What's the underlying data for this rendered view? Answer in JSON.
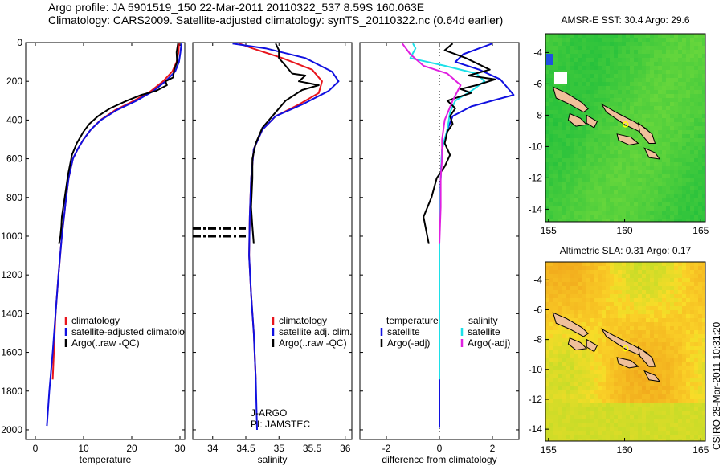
{
  "header": {
    "title_line1": "Argo profile: JA 5901519_150 22-Mar-2011 20110322_537 8.59S 160.063E",
    "title_line2": "Climatology: CARS2009. Satellite-adjusted climatology: synTS_20110322.nc (0.64d earlier)"
  },
  "colors": {
    "climatology": "#e8141c",
    "satellite": "#1010e0",
    "argo": "#000000",
    "sat_salinity": "#1ce0e8",
    "argo_salinity": "#e020e0",
    "land": "#f0c09a"
  },
  "credit": "CSIRO 28-Mar-2011 10:31:20",
  "chart_data": [
    {
      "type": "line",
      "xlabel": "temperature",
      "ylim": [
        2050,
        0
      ],
      "xlim": [
        -2,
        31
      ],
      "xticks": [
        "0",
        "10",
        "20",
        "30"
      ],
      "yticks": [
        "0",
        "200",
        "400",
        "600",
        "800",
        "1000",
        "1200",
        "1400",
        "1600",
        "1800",
        "2000"
      ],
      "legend": [
        "climatology",
        "satellite-adjusted climatology",
        "Argo(..raw -QC)"
      ],
      "series": [
        {
          "name": "climatology",
          "color_key": "climatology",
          "x": [
            29.8,
            29.7,
            29.3,
            28.4,
            26.5,
            24.0,
            20.5,
            16.5,
            13.5,
            11.5,
            10.0,
            8.8,
            7.8,
            6.9,
            6.4,
            5.5,
            4.8,
            4.2,
            3.6
          ],
          "y": [
            5,
            50,
            100,
            150,
            200,
            250,
            300,
            350,
            400,
            450,
            500,
            550,
            600,
            700,
            800,
            1000,
            1200,
            1400,
            1740
          ]
        },
        {
          "name": "satellite-adjusted climatology",
          "color_key": "satellite",
          "x": [
            30.3,
            30.1,
            29.8,
            29.0,
            27.0,
            24.5,
            21.0,
            16.8,
            13.6,
            11.5,
            10.0,
            8.8,
            7.8,
            6.9,
            6.4,
            5.5,
            4.8,
            4.2,
            3.6,
            2.9,
            2.4
          ],
          "y": [
            5,
            50,
            100,
            150,
            200,
            250,
            300,
            350,
            400,
            450,
            500,
            550,
            600,
            700,
            800,
            1000,
            1200,
            1400,
            1600,
            1800,
            1980
          ]
        },
        {
          "name": "Argo(..raw -QC)",
          "color_key": "argo",
          "x": [
            29.6,
            29.3,
            29.4,
            28.8,
            28.6,
            27.0,
            27.3,
            25.0,
            22.0,
            19.0,
            15.5,
            13.0,
            11.2,
            10.0,
            8.6,
            7.6,
            6.8,
            6.1,
            5.5,
            5.4,
            5.2,
            4.9
          ],
          "y": [
            5,
            50,
            100,
            140,
            180,
            200,
            220,
            250,
            270,
            300,
            340,
            380,
            420,
            460,
            520,
            580,
            680,
            800,
            900,
            950,
            1000,
            1040
          ]
        }
      ]
    },
    {
      "type": "line",
      "xlabel": "salinity",
      "ylim": [
        2050,
        0
      ],
      "xlim": [
        33.7,
        36.1
      ],
      "xticks": [
        "34",
        "34.5",
        "35",
        "35.5",
        "36"
      ],
      "legend": [
        "climatology",
        "satellite adj. clim.",
        "Argo(..raw -QC)"
      ],
      "annotations": [
        "J-ARGO",
        "PI: JAMSTEC"
      ],
      "series": [
        {
          "name": "climatology",
          "color_key": "climatology",
          "x": [
            34.4,
            34.6,
            35.05,
            35.5,
            35.65,
            35.6,
            35.3,
            34.95,
            34.75,
            34.62,
            34.58,
            34.56,
            34.55,
            34.58,
            34.62,
            34.65
          ],
          "y": [
            5,
            30,
            80,
            140,
            200,
            260,
            320,
            380,
            450,
            550,
            700,
            900,
            1100,
            1300,
            1500,
            1740
          ]
        },
        {
          "name": "satellite adj. clim.",
          "color_key": "satellite",
          "x": [
            34.3,
            34.8,
            35.4,
            35.8,
            35.9,
            35.75,
            35.35,
            34.95,
            34.75,
            34.62,
            34.58,
            34.56,
            34.55,
            34.58,
            34.62,
            34.65,
            34.67
          ],
          "y": [
            5,
            30,
            80,
            150,
            200,
            250,
            320,
            380,
            450,
            550,
            700,
            900,
            1100,
            1300,
            1500,
            1740,
            2000
          ]
        },
        {
          "name": "Argo(..raw -QC)",
          "color_key": "argo",
          "x": [
            34.95,
            35.0,
            35.0,
            35.1,
            35.2,
            35.4,
            35.3,
            35.6,
            35.35,
            35.1,
            34.95,
            34.75,
            34.65,
            34.6,
            34.6,
            34.58,
            34.6,
            34.62
          ],
          "y": [
            5,
            40,
            80,
            120,
            160,
            170,
            200,
            220,
            245,
            300,
            360,
            440,
            520,
            600,
            700,
            850,
            950,
            1040
          ]
        }
      ]
    },
    {
      "type": "line",
      "xlabel": "difference from climatology",
      "ylim": [
        2050,
        0
      ],
      "xlim": [
        -3,
        3
      ],
      "xticks": [
        "-2",
        "0",
        "2"
      ],
      "legend_groups": [
        {
          "title": "temperature",
          "items": [
            "satellite",
            "Argo(-adj)"
          ]
        },
        {
          "title": "salinity",
          "items": [
            "satellite",
            "Argo(-adj)"
          ]
        }
      ],
      "series": [
        {
          "name": "temperature satellite",
          "color_key": "satellite",
          "x": [
            2.0,
            1.5,
            0.9,
            0.6,
            1.5,
            2.3,
            2.8,
            1.2,
            0.5,
            0.3,
            0.1,
            0.05,
            0.0,
            0.0,
            0.0,
            0.0,
            0.0
          ],
          "y": [
            5,
            30,
            60,
            100,
            140,
            190,
            270,
            330,
            380,
            450,
            550,
            700,
            900,
            1200,
            1500,
            1800,
            1990
          ]
        },
        {
          "name": "salinity satellite",
          "color_key": "sat_salinity",
          "x": [
            -1.0,
            -0.9,
            -1.1,
            0.2,
            1.4,
            1.7,
            1.2,
            0.6,
            0.4,
            0.3,
            0.1,
            0.05,
            0.0,
            0.0,
            0.0,
            0.0
          ],
          "y": [
            5,
            30,
            80,
            120,
            160,
            200,
            250,
            300,
            360,
            450,
            550,
            700,
            900,
            1200,
            1500,
            1740
          ]
        },
        {
          "name": "temperature Argo(-adj)",
          "color_key": "argo",
          "x": [
            0.5,
            0.2,
            1.0,
            1.9,
            1.1,
            2.1,
            1.4,
            0.8,
            1.2,
            0.3,
            0.6,
            0.4,
            0.5,
            0.3,
            0.2,
            0.4,
            0.2,
            -0.1,
            -0.3,
            -0.6,
            -0.4
          ],
          "y": [
            5,
            40,
            80,
            140,
            170,
            190,
            220,
            240,
            260,
            300,
            340,
            380,
            420,
            460,
            520,
            580,
            640,
            700,
            800,
            900,
            1040
          ]
        },
        {
          "name": "salinity Argo(-adj)",
          "color_key": "argo_salinity",
          "x": [
            -1.4,
            -1.1,
            -0.6,
            0.3,
            0.8,
            0.5,
            0.2,
            0.1,
            0.1,
            0.05,
            0.05,
            0.0
          ],
          "y": [
            5,
            60,
            120,
            160,
            220,
            300,
            400,
            500,
            600,
            700,
            850,
            1040
          ]
        }
      ]
    },
    {
      "type": "heatmap",
      "title": "AMSR-E SST: 30.4  Argo: 29.6",
      "xticks": [
        "155",
        "160",
        "165"
      ],
      "yticks": [
        "-4",
        "-6",
        "-8",
        "-10",
        "-12",
        "-14"
      ],
      "xlim": [
        154.8,
        165.3
      ],
      "ylim": [
        -14.8,
        -2.8
      ],
      "argo_position": [
        160.063,
        -8.59
      ]
    },
    {
      "type": "heatmap",
      "title": "Altimetric SLA: 0.31  Argo: 0.17",
      "xticks": [
        "155",
        "160",
        "165"
      ],
      "yticks": [
        "-4",
        "-6",
        "-8",
        "-10",
        "-12",
        "-14"
      ],
      "xlim": [
        154.8,
        165.3
      ],
      "ylim": [
        -14.8,
        -2.8
      ],
      "argo_position": [
        160.063,
        -8.59
      ]
    }
  ]
}
